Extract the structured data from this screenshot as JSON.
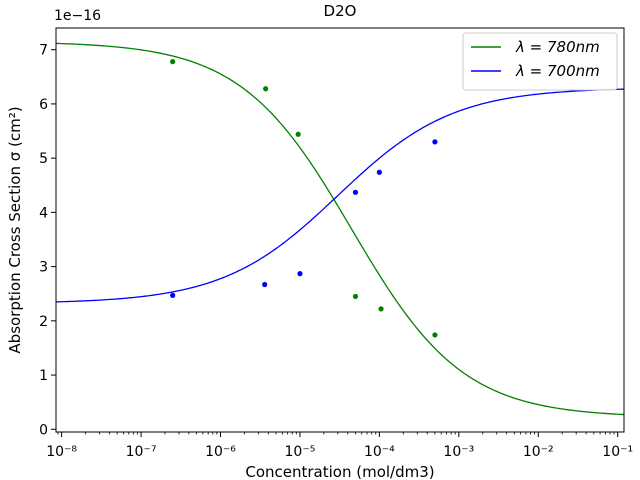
{
  "chart_data": {
    "type": "scatter",
    "title": "D2O",
    "xlabel": "Concentration (mol/dm3)",
    "ylabel": "Absorption Cross Section σ (cm²)",
    "y_offset_label": "1e−16",
    "x_scale": "log",
    "xlim": [
      8.5e-09,
      0.12
    ],
    "ylim": [
      -0.05,
      7.4
    ],
    "y_unit_multiplier": 1e-16,
    "x_ticks": [
      {
        "value": 1e-08,
        "label": "10⁻⁸"
      },
      {
        "value": 1e-07,
        "label": "10⁻⁷"
      },
      {
        "value": 1e-06,
        "label": "10⁻⁶"
      },
      {
        "value": 1e-05,
        "label": "10⁻⁵"
      },
      {
        "value": 0.0001,
        "label": "10⁻⁴"
      },
      {
        "value": 0.001,
        "label": "10⁻³"
      },
      {
        "value": 0.01,
        "label": "10⁻²"
      },
      {
        "value": 0.1,
        "label": "10⁻¹"
      }
    ],
    "y_ticks": [
      {
        "value": 0,
        "label": "0"
      },
      {
        "value": 1,
        "label": "1"
      },
      {
        "value": 2,
        "label": "2"
      },
      {
        "value": 3,
        "label": "3"
      },
      {
        "value": 4,
        "label": "4"
      },
      {
        "value": 5,
        "label": "5"
      },
      {
        "value": 6,
        "label": "6"
      },
      {
        "value": 7,
        "label": "7"
      }
    ],
    "grid": false,
    "legend_position": "top-right",
    "series": [
      {
        "name": "λ = 780nm",
        "color": "#008000",
        "points": [
          {
            "x": 2.5e-07,
            "y": 6.78
          },
          {
            "x": 3.7e-06,
            "y": 6.28
          },
          {
            "x": 9.5e-06,
            "y": 5.44
          },
          {
            "x": 5e-05,
            "y": 2.45
          },
          {
            "x": 0.000105,
            "y": 2.22
          },
          {
            "x": 0.0005,
            "y": 1.74
          }
        ],
        "fit": {
          "bottom": 0.22,
          "top": 7.15,
          "ec50": 4.5e-05,
          "hill": -0.62
        }
      },
      {
        "name": "λ = 700nm",
        "color": "#0000ff",
        "points": [
          {
            "x": 2.5e-07,
            "y": 2.47
          },
          {
            "x": 3.6e-06,
            "y": 2.67
          },
          {
            "x": 1e-05,
            "y": 2.87
          },
          {
            "x": 5e-05,
            "y": 4.37
          },
          {
            "x": 0.0001,
            "y": 4.74
          },
          {
            "x": 0.0005,
            "y": 5.3
          }
        ],
        "fit": {
          "bottom": 2.32,
          "top": 6.3,
          "ec50": 3e-05,
          "hill": 0.6
        }
      }
    ]
  }
}
